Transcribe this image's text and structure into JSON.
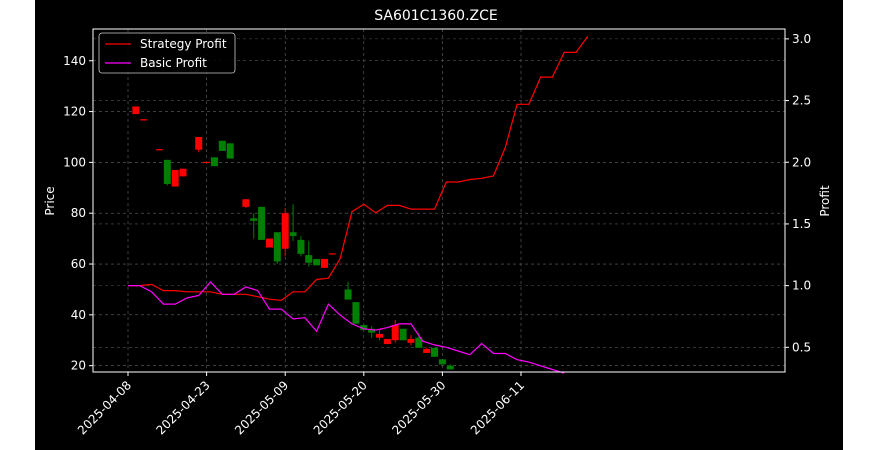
{
  "chart_data": {
    "type": "candlestick+line",
    "title": "SA601C1360.ZCE",
    "ylabel_left": "Price",
    "ylabel_right": "Profit",
    "ylim_left": [
      17.5,
      152.5
    ],
    "ylim_right": [
      0.3,
      3.08
    ],
    "yticks_left": [
      20,
      40,
      60,
      80,
      100,
      120,
      140
    ],
    "yticks_right": [
      "0.5",
      "1.0",
      "1.5",
      "2.0",
      "2.5",
      "3.0"
    ],
    "yticks_right_values": [
      0.5,
      1.0,
      1.5,
      2.0,
      2.5,
      3.0
    ],
    "xtick_labels": [
      "2025-04-08",
      "2025-04-23",
      "2025-05-09",
      "2025-05-20",
      "2025-05-30",
      "2025-06-11"
    ],
    "xtick_index": [
      0,
      10,
      20,
      30,
      40,
      50
    ],
    "colors": {
      "up": "#ff0000",
      "down": "#008000",
      "strategy": "#ff0000",
      "basic": "#ff00ff",
      "background": "#000000",
      "axes": "#ffffff"
    },
    "legend_position": "upper-left",
    "legend": [
      "Strategy Profit",
      "Basic Profit"
    ],
    "candles": [
      {
        "i": 1,
        "o": 119,
        "c": 122,
        "h": 122,
        "l": 119
      },
      {
        "i": 2,
        "o": 116.5,
        "c": 117,
        "h": 117,
        "l": 116.5
      },
      {
        "i": 4,
        "o": 104.8,
        "c": 105.2,
        "h": 105.2,
        "l": 104.8
      },
      {
        "i": 5,
        "o": 101,
        "c": 91.5,
        "h": 101,
        "l": 91
      },
      {
        "i": 6,
        "o": 90.5,
        "c": 97,
        "h": 97,
        "l": 90.5
      },
      {
        "i": 7,
        "o": 94.5,
        "c": 97.5,
        "h": 97.5,
        "l": 94.5
      },
      {
        "i": 9,
        "o": 105,
        "c": 110,
        "h": 110,
        "l": 104
      },
      {
        "i": 10,
        "o": 99.8,
        "c": 100.2,
        "h": 100.2,
        "l": 99.8
      },
      {
        "i": 11,
        "o": 102,
        "c": 98.5,
        "h": 102,
        "l": 98.5
      },
      {
        "i": 12,
        "o": 108.5,
        "c": 104.5,
        "h": 108.5,
        "l": 104.5
      },
      {
        "i": 13,
        "o": 107.5,
        "c": 101.5,
        "h": 107.5,
        "l": 101.5
      },
      {
        "i": 15,
        "o": 82.5,
        "c": 85.5,
        "h": 85.5,
        "l": 82
      },
      {
        "i": 16,
        "o": 78,
        "c": 77,
        "h": 80,
        "l": 70
      },
      {
        "i": 17,
        "o": 82.5,
        "c": 69.5,
        "h": 82.5,
        "l": 69.5
      },
      {
        "i": 18,
        "o": 66.5,
        "c": 70,
        "h": 70,
        "l": 66.5
      },
      {
        "i": 19,
        "o": 72.5,
        "c": 61,
        "h": 72.5,
        "l": 60
      },
      {
        "i": 20,
        "o": 66,
        "c": 80,
        "h": 82,
        "l": 63
      },
      {
        "i": 21,
        "o": 72.5,
        "c": 71,
        "h": 83.5,
        "l": 69
      },
      {
        "i": 22,
        "o": 69.5,
        "c": 64,
        "h": 71,
        "l": 63
      },
      {
        "i": 23,
        "o": 63.5,
        "c": 60.5,
        "h": 69,
        "l": 59
      },
      {
        "i": 24,
        "o": 62,
        "c": 59.5,
        "h": 62,
        "l": 59.5
      },
      {
        "i": 25,
        "o": 58.5,
        "c": 62,
        "h": 62,
        "l": 58.5
      },
      {
        "i": 26,
        "o": 63.8,
        "c": 64.2,
        "h": 64.2,
        "l": 63.8
      },
      {
        "i": 28,
        "o": 50,
        "c": 46,
        "h": 53,
        "l": 46
      },
      {
        "i": 29,
        "o": 45,
        "c": 36.5,
        "h": 45,
        "l": 36.5
      },
      {
        "i": 30,
        "o": 36,
        "c": 34,
        "h": 36,
        "l": 34
      },
      {
        "i": 31,
        "o": 34.5,
        "c": 33,
        "h": 35.5,
        "l": 31
      },
      {
        "i": 32,
        "o": 31,
        "c": 32.5,
        "h": 34,
        "l": 30
      },
      {
        "i": 33,
        "o": 28.5,
        "c": 30.5,
        "h": 30.5,
        "l": 28.5
      },
      {
        "i": 34,
        "o": 30,
        "c": 36,
        "h": 38,
        "l": 29
      },
      {
        "i": 35,
        "o": 34.5,
        "c": 30,
        "h": 34.5,
        "l": 30
      },
      {
        "i": 36,
        "o": 29,
        "c": 30.5,
        "h": 32,
        "l": 28
      },
      {
        "i": 37,
        "o": 31,
        "c": 27,
        "h": 33,
        "l": 27
      },
      {
        "i": 38,
        "o": 25,
        "c": 26.5,
        "h": 27,
        "l": 25
      },
      {
        "i": 39,
        "o": 27,
        "c": 23.5,
        "h": 27,
        "l": 23.5
      },
      {
        "i": 40,
        "o": 22.5,
        "c": 20.5,
        "h": 22.5,
        "l": 20.5
      },
      {
        "i": 41,
        "o": 20,
        "c": 18.5,
        "h": 20.5,
        "l": 18.5
      }
    ],
    "strategy_profit": [
      {
        "i": 0,
        "v": 1.0
      },
      {
        "i": 1,
        "v": 1.0
      },
      {
        "i": 2,
        "v": 1.01
      },
      {
        "i": 3,
        "v": 0.96
      },
      {
        "i": 4,
        "v": 0.96
      },
      {
        "i": 5,
        "v": 0.95
      },
      {
        "i": 6,
        "v": 0.95
      },
      {
        "i": 7,
        "v": 0.95
      },
      {
        "i": 8,
        "v": 0.93
      },
      {
        "i": 9,
        "v": 0.93
      },
      {
        "i": 10,
        "v": 0.93
      },
      {
        "i": 11,
        "v": 0.91
      },
      {
        "i": 12,
        "v": 0.89
      },
      {
        "i": 13,
        "v": 0.88
      },
      {
        "i": 14,
        "v": 0.95
      },
      {
        "i": 15,
        "v": 0.95
      },
      {
        "i": 16,
        "v": 1.05
      },
      {
        "i": 17,
        "v": 1.06
      },
      {
        "i": 18,
        "v": 1.22
      },
      {
        "i": 19,
        "v": 1.6
      },
      {
        "i": 20,
        "v": 1.66
      },
      {
        "i": 21,
        "v": 1.59
      },
      {
        "i": 22,
        "v": 1.65
      },
      {
        "i": 23,
        "v": 1.65
      },
      {
        "i": 24,
        "v": 1.62
      },
      {
        "i": 25,
        "v": 1.62
      },
      {
        "i": 26,
        "v": 1.62
      },
      {
        "i": 27,
        "v": 1.84
      },
      {
        "i": 28,
        "v": 1.84
      },
      {
        "i": 29,
        "v": 1.86
      },
      {
        "i": 30,
        "v": 1.87
      },
      {
        "i": 31,
        "v": 1.89
      },
      {
        "i": 32,
        "v": 2.12
      },
      {
        "i": 33,
        "v": 2.47
      },
      {
        "i": 34,
        "v": 2.47
      },
      {
        "i": 35,
        "v": 2.69
      },
      {
        "i": 36,
        "v": 2.69
      },
      {
        "i": 37,
        "v": 2.89
      },
      {
        "i": 38,
        "v": 2.89
      },
      {
        "i": 39,
        "v": 3.02
      }
    ],
    "basic_profit": [
      {
        "i": 0,
        "v": 1.0
      },
      {
        "i": 1,
        "v": 1.0
      },
      {
        "i": 2,
        "v": 0.95
      },
      {
        "i": 3,
        "v": 0.85
      },
      {
        "i": 4,
        "v": 0.85
      },
      {
        "i": 5,
        "v": 0.9
      },
      {
        "i": 6,
        "v": 0.92
      },
      {
        "i": 7,
        "v": 1.03
      },
      {
        "i": 8,
        "v": 0.93
      },
      {
        "i": 9,
        "v": 0.93
      },
      {
        "i": 10,
        "v": 0.99
      },
      {
        "i": 11,
        "v": 0.96
      },
      {
        "i": 12,
        "v": 0.81
      },
      {
        "i": 13,
        "v": 0.81
      },
      {
        "i": 14,
        "v": 0.73
      },
      {
        "i": 15,
        "v": 0.74
      },
      {
        "i": 16,
        "v": 0.63
      },
      {
        "i": 17,
        "v": 0.85
      },
      {
        "i": 18,
        "v": 0.76
      },
      {
        "i": 19,
        "v": 0.69
      },
      {
        "i": 20,
        "v": 0.65
      },
      {
        "i": 21,
        "v": 0.64
      },
      {
        "i": 22,
        "v": 0.66
      },
      {
        "i": 23,
        "v": 0.69
      },
      {
        "i": 24,
        "v": 0.69
      },
      {
        "i": 25,
        "v": 0.55
      },
      {
        "i": 26,
        "v": 0.52
      },
      {
        "i": 27,
        "v": 0.5
      },
      {
        "i": 28,
        "v": 0.47
      },
      {
        "i": 29,
        "v": 0.44
      },
      {
        "i": 30,
        "v": 0.53
      },
      {
        "i": 31,
        "v": 0.45
      },
      {
        "i": 32,
        "v": 0.45
      },
      {
        "i": 33,
        "v": 0.4
      },
      {
        "i": 34,
        "v": 0.38
      },
      {
        "i": 35,
        "v": 0.35
      },
      {
        "i": 36,
        "v": 0.32
      },
      {
        "i": 37,
        "v": 0.29
      }
    ]
  }
}
